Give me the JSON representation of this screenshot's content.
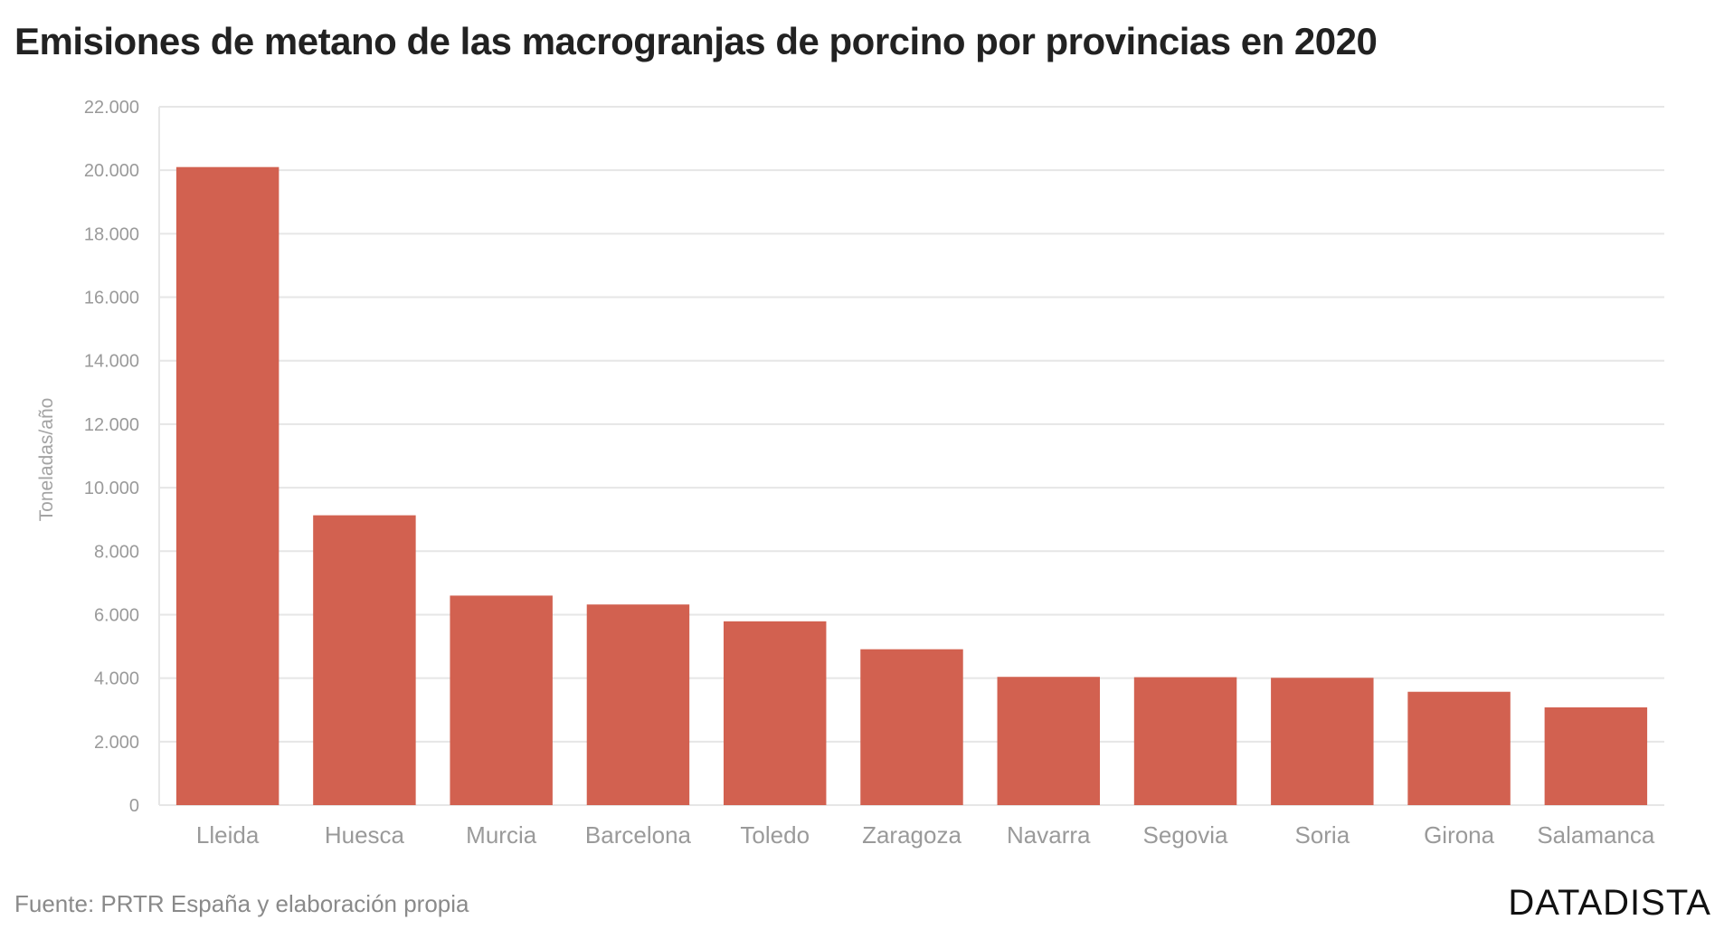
{
  "chart_data": {
    "type": "bar",
    "title": "Emisiones de metano de las macrogranjas de porcino por provincias en 2020",
    "xlabel": "",
    "ylabel": "Toneladas/año",
    "categories": [
      "Lleida",
      "Huesca",
      "Murcia",
      "Barcelona",
      "Toledo",
      "Zaragoza",
      "Navarra",
      "Segovia",
      "Soria",
      "Girona",
      "Salamanca"
    ],
    "values": [
      20100,
      9130,
      6600,
      6320,
      5790,
      4910,
      4040,
      4030,
      4010,
      3570,
      3080
    ],
    "ylim": [
      0,
      22000
    ],
    "yticks": [
      0,
      2000,
      4000,
      6000,
      8000,
      10000,
      12000,
      14000,
      16000,
      18000,
      20000,
      22000
    ],
    "ytick_labels": [
      "0",
      "2.000",
      "4.000",
      "6.000",
      "8.000",
      "10.000",
      "12.000",
      "14.000",
      "16.000",
      "18.000",
      "20.000",
      "22.000"
    ],
    "grid": true,
    "bar_color": "#d26150",
    "grid_color": "#e6e6e6"
  },
  "footer": {
    "source": "Fuente: PRTR España y elaboración propia",
    "brand": "DATADISTA"
  }
}
